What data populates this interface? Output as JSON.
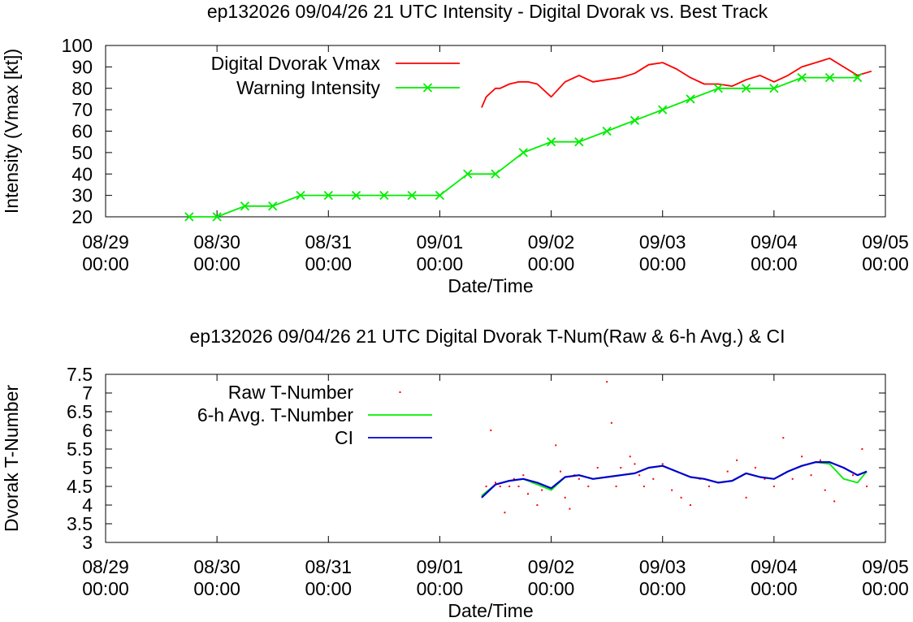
{
  "chart_data": [
    {
      "type": "line",
      "title": "ep132026 09/04/26  21 UTC Intensity - Digital Dvorak vs. Best Track",
      "xlabel": "Date/Time",
      "ylabel": "Intensity (Vmax [kt])",
      "ylim": [
        20,
        100
      ],
      "yticks": [
        "20",
        "30",
        "40",
        "50",
        "60",
        "70",
        "80",
        "90",
        "100"
      ],
      "xticks": [
        {
          "d": "08/29",
          "t": "00:00"
        },
        {
          "d": "08/30",
          "t": "00:00"
        },
        {
          "d": "08/31",
          "t": "00:00"
        },
        {
          "d": "09/01",
          "t": "00:00"
        },
        {
          "d": "09/02",
          "t": "00:00"
        },
        {
          "d": "09/03",
          "t": "00:00"
        },
        {
          "d": "09/04",
          "t": "00:00"
        },
        {
          "d": "09/05",
          "t": "00:00"
        }
      ],
      "xlim": [
        "2026-08-29 00:00",
        "2026-09-05 00:00"
      ],
      "legend": "top-left",
      "series": [
        {
          "name": "Digital Dvorak Vmax",
          "color": "#ff0000",
          "marker": "none",
          "x": [
            "2026-09-01 09:00",
            "2026-09-01 10:00",
            "2026-09-01 11:00",
            "2026-09-01 12:00",
            "2026-09-01 13:00",
            "2026-09-01 15:00",
            "2026-09-01 17:00",
            "2026-09-01 19:00",
            "2026-09-01 21:00",
            "2026-09-02 00:00",
            "2026-09-02 03:00",
            "2026-09-02 06:00",
            "2026-09-02 09:00",
            "2026-09-02 12:00",
            "2026-09-02 15:00",
            "2026-09-02 18:00",
            "2026-09-02 21:00",
            "2026-09-03 00:00",
            "2026-09-03 03:00",
            "2026-09-03 06:00",
            "2026-09-03 09:00",
            "2026-09-03 12:00",
            "2026-09-03 15:00",
            "2026-09-03 18:00",
            "2026-09-03 21:00",
            "2026-09-04 00:00",
            "2026-09-04 03:00",
            "2026-09-04 06:00",
            "2026-09-04 09:00",
            "2026-09-04 12:00",
            "2026-09-04 15:00",
            "2026-09-04 18:00",
            "2026-09-04 21:00"
          ],
          "y": [
            71,
            76,
            78,
            80,
            80,
            82,
            83,
            83,
            82,
            76,
            83,
            86,
            83,
            84,
            85,
            87,
            91,
            92,
            89,
            85,
            82,
            82,
            81,
            84,
            86,
            83,
            86,
            90,
            92,
            94,
            90,
            86,
            88
          ]
        },
        {
          "name": "Warning Intensity",
          "color": "#00ee00",
          "marker": "x",
          "x": [
            "2026-08-29 18:00",
            "2026-08-30 00:00",
            "2026-08-30 06:00",
            "2026-08-30 12:00",
            "2026-08-30 18:00",
            "2026-08-31 00:00",
            "2026-08-31 06:00",
            "2026-08-31 12:00",
            "2026-08-31 18:00",
            "2026-09-01 00:00",
            "2026-09-01 06:00",
            "2026-09-01 12:00",
            "2026-09-01 18:00",
            "2026-09-02 00:00",
            "2026-09-02 06:00",
            "2026-09-02 12:00",
            "2026-09-02 18:00",
            "2026-09-03 00:00",
            "2026-09-03 06:00",
            "2026-09-03 12:00",
            "2026-09-03 18:00",
            "2026-09-04 00:00",
            "2026-09-04 06:00",
            "2026-09-04 12:00",
            "2026-09-04 18:00"
          ],
          "y": [
            20,
            20,
            25,
            25,
            30,
            30,
            30,
            30,
            30,
            30,
            40,
            40,
            50,
            55,
            55,
            60,
            65,
            70,
            75,
            80,
            80,
            80,
            85,
            85,
            85
          ]
        }
      ]
    },
    {
      "type": "line",
      "title": "ep132026 09/04/26  21 UTC Digital Dvorak T-Num(Raw & 6-h Avg.) & CI",
      "xlabel": "Date/Time",
      "ylabel": "Dvorak T-Number",
      "ylim": [
        3,
        7.5
      ],
      "yticks": [
        "3",
        "3.5",
        "4",
        "4.5",
        "5",
        "5.5",
        "6",
        "6.5",
        "7",
        "7.5"
      ],
      "xticks": [
        {
          "d": "08/29",
          "t": "00:00"
        },
        {
          "d": "08/30",
          "t": "00:00"
        },
        {
          "d": "08/31",
          "t": "00:00"
        },
        {
          "d": "09/01",
          "t": "00:00"
        },
        {
          "d": "09/02",
          "t": "00:00"
        },
        {
          "d": "09/03",
          "t": "00:00"
        },
        {
          "d": "09/04",
          "t": "00:00"
        },
        {
          "d": "09/05",
          "t": "00:00"
        }
      ],
      "xlim": [
        "2026-08-29 00:00",
        "2026-09-05 00:00"
      ],
      "legend": "top-left",
      "series": [
        {
          "name": "Raw T-Number",
          "color": "#ff0000",
          "marker": "dot",
          "x": [
            "2026-09-01 10:00",
            "2026-09-01 11:00",
            "2026-09-01 12:00",
            "2026-09-01 13:00",
            "2026-09-01 14:00",
            "2026-09-01 15:00",
            "2026-09-01 16:00",
            "2026-09-01 17:00",
            "2026-09-01 18:00",
            "2026-09-01 19:00",
            "2026-09-01 20:00",
            "2026-09-01 21:00",
            "2026-09-01 22:00",
            "2026-09-01 23:00",
            "2026-09-02 01:00",
            "2026-09-02 02:00",
            "2026-09-02 03:00",
            "2026-09-02 04:00",
            "2026-09-02 05:00",
            "2026-09-02 06:00",
            "2026-09-02 08:00",
            "2026-09-02 10:00",
            "2026-09-02 12:00",
            "2026-09-02 13:00",
            "2026-09-02 14:00",
            "2026-09-02 15:00",
            "2026-09-02 17:00",
            "2026-09-02 18:00",
            "2026-09-02 19:00",
            "2026-09-02 20:00",
            "2026-09-02 22:00",
            "2026-09-03 00:00",
            "2026-09-03 02:00",
            "2026-09-03 04:00",
            "2026-09-03 06:00",
            "2026-09-03 08:00",
            "2026-09-03 10:00",
            "2026-09-03 12:00",
            "2026-09-03 14:00",
            "2026-09-03 16:00",
            "2026-09-03 18:00",
            "2026-09-03 20:00",
            "2026-09-03 22:00",
            "2026-09-04 00:00",
            "2026-09-04 02:00",
            "2026-09-04 04:00",
            "2026-09-04 06:00",
            "2026-09-04 08:00",
            "2026-09-04 10:00",
            "2026-09-04 11:00",
            "2026-09-04 13:00",
            "2026-09-04 15:00",
            "2026-09-04 17:00",
            "2026-09-04 19:00",
            "2026-09-04 20:00"
          ],
          "y": [
            4.5,
            6.0,
            4.6,
            4.5,
            3.8,
            4.5,
            4.7,
            4.5,
            4.8,
            4.3,
            4.6,
            4.0,
            4.4,
            4.5,
            5.6,
            4.9,
            4.2,
            3.9,
            4.8,
            4.7,
            4.5,
            5.0,
            7.3,
            6.2,
            4.5,
            5.0,
            5.3,
            5.1,
            4.8,
            4.5,
            4.7,
            5.1,
            4.4,
            4.2,
            4.0,
            4.7,
            4.5,
            4.6,
            4.9,
            5.2,
            4.2,
            5.0,
            4.7,
            4.5,
            5.8,
            4.7,
            5.3,
            4.8,
            5.2,
            4.4,
            4.1,
            5.0,
            4.8,
            5.5,
            4.5
          ]
        },
        {
          "name": "6-h Avg. T-Number",
          "color": "#00ee00",
          "marker": "none",
          "x": [
            "2026-09-01 09:00",
            "2026-09-01 12:00",
            "2026-09-01 15:00",
            "2026-09-01 18:00",
            "2026-09-01 21:00",
            "2026-09-02 00:00",
            "2026-09-02 03:00",
            "2026-09-02 06:00",
            "2026-09-02 09:00",
            "2026-09-02 12:00",
            "2026-09-02 15:00",
            "2026-09-02 18:00",
            "2026-09-02 21:00",
            "2026-09-03 00:00",
            "2026-09-03 03:00",
            "2026-09-03 06:00",
            "2026-09-03 09:00",
            "2026-09-03 12:00",
            "2026-09-03 15:00",
            "2026-09-03 18:00",
            "2026-09-03 21:00",
            "2026-09-04 00:00",
            "2026-09-04 03:00",
            "2026-09-04 06:00",
            "2026-09-04 09:00",
            "2026-09-04 12:00",
            "2026-09-04 15:00",
            "2026-09-04 18:00",
            "2026-09-04 20:00"
          ],
          "y": [
            4.25,
            4.55,
            4.65,
            4.7,
            4.55,
            4.4,
            4.75,
            4.8,
            4.7,
            4.75,
            4.8,
            4.85,
            5.0,
            5.05,
            4.9,
            4.75,
            4.7,
            4.6,
            4.65,
            4.85,
            4.75,
            4.7,
            4.9,
            5.05,
            5.15,
            5.1,
            4.7,
            4.6,
            4.9
          ]
        },
        {
          "name": "CI",
          "color": "#0000cc",
          "marker": "none",
          "x": [
            "2026-09-01 09:00",
            "2026-09-01 12:00",
            "2026-09-01 15:00",
            "2026-09-01 18:00",
            "2026-09-01 21:00",
            "2026-09-02 00:00",
            "2026-09-02 03:00",
            "2026-09-02 06:00",
            "2026-09-02 09:00",
            "2026-09-02 12:00",
            "2026-09-02 15:00",
            "2026-09-02 18:00",
            "2026-09-02 21:00",
            "2026-09-03 00:00",
            "2026-09-03 03:00",
            "2026-09-03 06:00",
            "2026-09-03 09:00",
            "2026-09-03 12:00",
            "2026-09-03 15:00",
            "2026-09-03 18:00",
            "2026-09-03 21:00",
            "2026-09-04 00:00",
            "2026-09-04 03:00",
            "2026-09-04 06:00",
            "2026-09-04 09:00",
            "2026-09-04 12:00",
            "2026-09-04 15:00",
            "2026-09-04 18:00",
            "2026-09-04 20:00"
          ],
          "y": [
            4.2,
            4.55,
            4.65,
            4.7,
            4.6,
            4.45,
            4.75,
            4.8,
            4.7,
            4.75,
            4.8,
            4.85,
            5.0,
            5.05,
            4.9,
            4.75,
            4.7,
            4.6,
            4.65,
            4.85,
            4.75,
            4.7,
            4.9,
            5.05,
            5.15,
            5.15,
            5.0,
            4.8,
            4.9
          ]
        }
      ]
    }
  ]
}
